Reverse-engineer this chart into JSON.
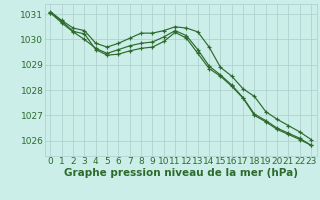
{
  "bg_color": "#cceee8",
  "grid_color": "#aacccc",
  "line_color": "#2d6a2d",
  "xlabel": "Graphe pression niveau de la mer (hPa)",
  "xlabel_fontsize": 7.5,
  "tick_fontsize": 6.5,
  "ylim": [
    1025.4,
    1031.4
  ],
  "xlim": [
    -0.5,
    23.5
  ],
  "yticks": [
    1026,
    1027,
    1028,
    1029,
    1030,
    1031
  ],
  "xticks": [
    0,
    1,
    2,
    3,
    4,
    5,
    6,
    7,
    8,
    9,
    10,
    11,
    12,
    13,
    14,
    15,
    16,
    17,
    18,
    19,
    20,
    21,
    22,
    23
  ],
  "series": [
    [
      1031.1,
      1030.75,
      1030.45,
      1030.35,
      1029.85,
      1029.7,
      1029.85,
      1030.05,
      1030.25,
      1030.25,
      1030.35,
      1030.5,
      1030.45,
      1030.3,
      1029.7,
      1028.9,
      1028.55,
      1028.05,
      1027.75,
      1027.15,
      1026.85,
      1026.6,
      1026.35,
      1026.05
    ],
    [
      1031.05,
      1030.65,
      1030.3,
      1030.0,
      1029.65,
      1029.45,
      1029.6,
      1029.75,
      1029.85,
      1029.9,
      1030.1,
      1030.35,
      1030.15,
      1029.6,
      1028.95,
      1028.6,
      1028.2,
      1027.7,
      1027.05,
      1026.8,
      1026.5,
      1026.3,
      1026.1,
      1025.82
    ],
    [
      1031.05,
      1030.72,
      1030.32,
      1030.22,
      1029.6,
      1029.38,
      1029.42,
      1029.55,
      1029.65,
      1029.7,
      1029.92,
      1030.28,
      1030.05,
      1029.45,
      1028.85,
      1028.55,
      1028.15,
      1027.68,
      1027.0,
      1026.75,
      1026.45,
      1026.25,
      1026.05,
      1025.82
    ]
  ]
}
